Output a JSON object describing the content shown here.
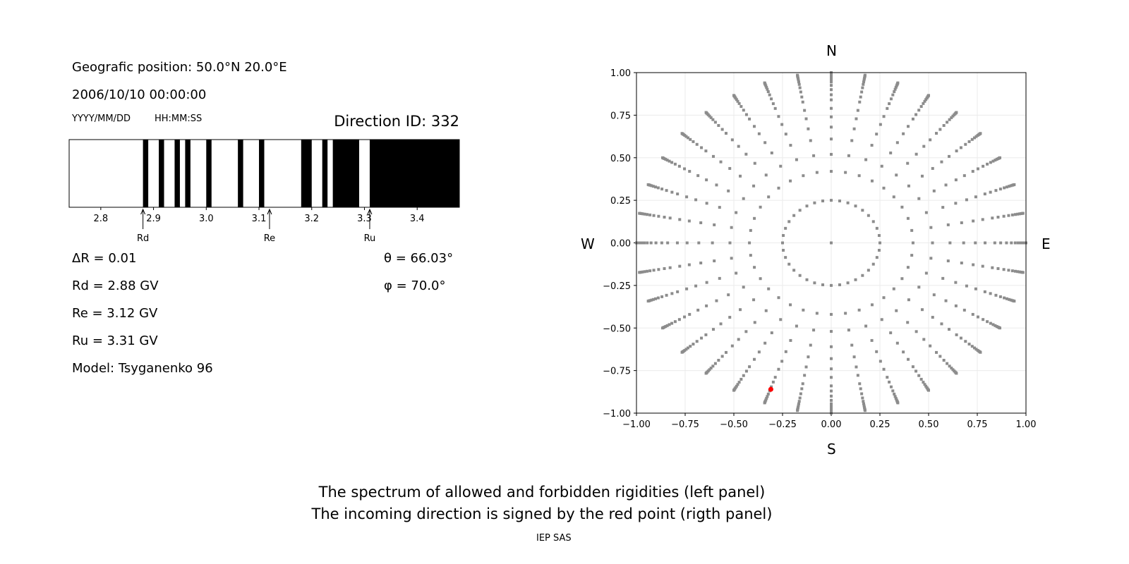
{
  "left_panel": {
    "position": "Geografic position: 50.0°N 20.0°E",
    "datetime": "2006/10/10 00:00:00",
    "date_format": "YYYY/MM/DD",
    "time_format": "HH:MM:SS",
    "direction_id": "Direction ID: 332",
    "dR": "ΔR = 0.01",
    "Rd": "Rd = 2.88 GV",
    "Re": "Re = 3.12 GV",
    "Ru": "Ru = 3.31 GV",
    "model": "Model: Tsyganenko 96",
    "theta": "θ = 66.03°",
    "phi": "φ = 70.0°"
  },
  "right_panel": {
    "north": "N",
    "south": "S",
    "west": "W",
    "east": "E"
  },
  "captions": {
    "line1": "The spectrum of allowed and forbidden rigidities (left panel)",
    "line2": "The incoming direction is signed by the red point (rigth panel)",
    "footer": "IEP SAS"
  },
  "chart_data": [
    {
      "type": "bar",
      "xlim": [
        2.74,
        3.48
      ],
      "x_ticks": [
        "2.8",
        "2.9",
        "3.0",
        "3.1",
        "3.2",
        "3.3",
        "3.4"
      ],
      "forbidden_intervals": [
        [
          2.88,
          2.89
        ],
        [
          2.91,
          2.92
        ],
        [
          2.94,
          2.95
        ],
        [
          2.96,
          2.97
        ],
        [
          3.0,
          3.01
        ],
        [
          3.06,
          3.07
        ],
        [
          3.1,
          3.11
        ],
        [
          3.18,
          3.2
        ],
        [
          3.22,
          3.23
        ],
        [
          3.24,
          3.29
        ],
        [
          3.31,
          3.48
        ]
      ],
      "markers": [
        {
          "label": "Rd",
          "x": 2.88
        },
        {
          "label": "Re",
          "x": 3.12
        },
        {
          "label": "Ru",
          "x": 3.31
        }
      ],
      "colors": {
        "forbidden": "#000000",
        "allowed": "#ffffff"
      }
    },
    {
      "type": "scatter",
      "xlim": [
        -1.0,
        1.0
      ],
      "ylim": [
        -1.0,
        1.0
      ],
      "x_ticks": [
        "−1.00",
        "−0.75",
        "−0.50",
        "−0.25",
        "0.00",
        "0.25",
        "0.50",
        "0.75",
        "1.00"
      ],
      "y_ticks": [
        "−1.00",
        "−0.75",
        "−0.50",
        "−0.25",
        "0.00",
        "0.25",
        "0.50",
        "0.75",
        "1.00"
      ],
      "grid": true,
      "directions": {
        "center": [
          0,
          0
        ],
        "inner_ring": {
          "r": 0.25,
          "count": 36
        },
        "rays": {
          "count": 36,
          "r": [
            0.42,
            0.52,
            0.61,
            0.68,
            0.74,
            0.79,
            0.84,
            0.87,
            0.9,
            0.925,
            0.945,
            0.96,
            0.972,
            0.982,
            0.99,
            0.996,
            1.0
          ]
        }
      },
      "highlight": {
        "x": -0.31,
        "y": -0.86
      },
      "colors": {
        "points": "#8c8c8c",
        "highlight": "#ff0000",
        "grid": "#ebebeb"
      }
    }
  ]
}
